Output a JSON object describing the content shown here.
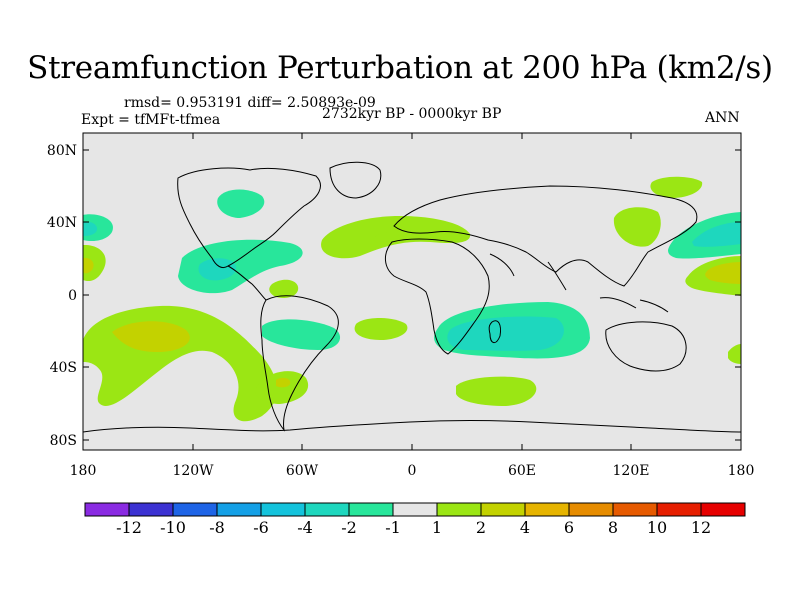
{
  "title": "Streamfunction Perturbation at 200 hPa (km2/s)",
  "stats": "rmsd= 0.953191 diff= 2.50893e-09",
  "experiment": "Expt = tfMFt-tfmea",
  "period": "2732kyr BP - 0000kyr BP",
  "season": "ANN",
  "lat_ticks": [
    "80N",
    "40N",
    "0",
    "40S",
    "80S"
  ],
  "lon_ticks": [
    "180",
    "120W",
    "60W",
    "0",
    "60E",
    "120E",
    "180"
  ],
  "colorbar": {
    "labels": [
      "-12",
      "-10",
      "-8",
      "-6",
      "-4",
      "-2",
      "-1",
      "1",
      "2",
      "4",
      "6",
      "8",
      "10",
      "12"
    ],
    "colors": [
      "#8a2be2",
      "#3c32d2",
      "#1e64e6",
      "#14a0e6",
      "#14c3dc",
      "#1ed7be",
      "#28e69b",
      "#e6e6e6",
      "#9be614",
      "#c3d200",
      "#e6b400",
      "#e68c00",
      "#e65a00",
      "#e61e00",
      "#e60000"
    ]
  }
}
